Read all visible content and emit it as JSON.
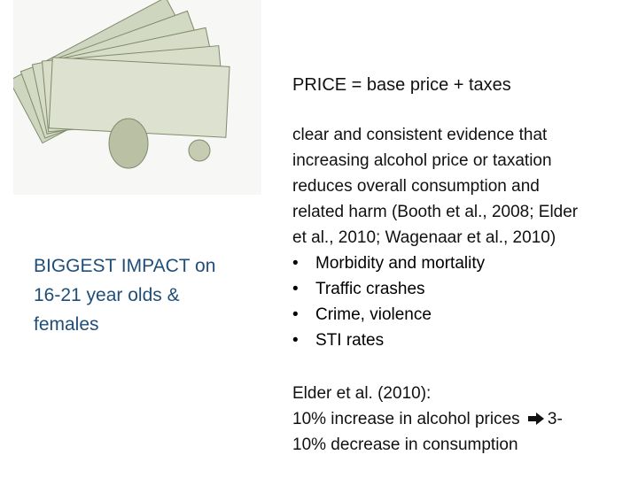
{
  "left": {
    "heading_lines": [
      "BIGGEST IMPACT on",
      "16-21 year olds &",
      "females"
    ]
  },
  "right": {
    "title": "PRICE = base price + taxes",
    "evidence_lines": [
      "clear and consistent evidence that",
      "increasing alcohol price or taxation",
      "reduces overall consumption and",
      "related harm (Booth et al., 2008; Elder",
      "et al., 2010; Wagenaar et al., 2010)"
    ],
    "bullets": [
      "Morbidity and mortality",
      "Traffic crashes",
      "Crime, violence",
      "STI rates"
    ],
    "study": {
      "heading": "Elder et al. (2010):",
      "line1": "10% increase in alcohol prices",
      "line1_end": "3-",
      "line2": "10% decrease in consumption"
    }
  }
}
